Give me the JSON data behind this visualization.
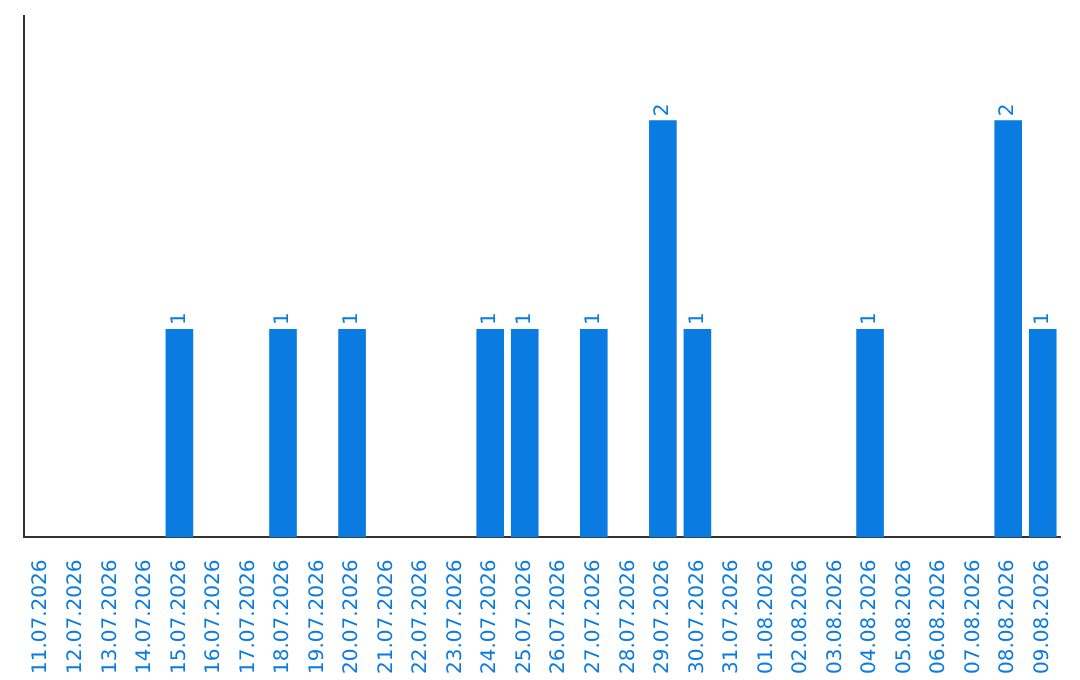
{
  "chart_data": {
    "type": "bar",
    "categories": [
      "11.07.2026",
      "12.07.2026",
      "13.07.2026",
      "14.07.2026",
      "15.07.2026",
      "16.07.2026",
      "17.07.2026",
      "18.07.2026",
      "19.07.2026",
      "20.07.2026",
      "21.07.2026",
      "22.07.2026",
      "23.07.2026",
      "24.07.2026",
      "25.07.2026",
      "26.07.2026",
      "27.07.2026",
      "28.07.2026",
      "29.07.2026",
      "30.07.2026",
      "31.07.2026",
      "01.08.2026",
      "02.08.2026",
      "03.08.2026",
      "04.08.2026",
      "05.08.2026",
      "06.08.2026",
      "07.08.2026",
      "08.08.2026",
      "09.08.2026"
    ],
    "values": [
      0,
      0,
      0,
      0,
      1,
      0,
      0,
      1,
      0,
      1,
      0,
      0,
      0,
      1,
      1,
      0,
      1,
      0,
      2,
      1,
      0,
      0,
      0,
      0,
      1,
      0,
      0,
      0,
      2,
      1
    ],
    "value_labels": [
      null,
      null,
      null,
      null,
      "1",
      null,
      null,
      "1",
      null,
      "1",
      null,
      null,
      null,
      "1",
      "1",
      null,
      "1",
      null,
      "2",
      "1",
      null,
      null,
      null,
      null,
      "1",
      null,
      null,
      null,
      "2",
      "1"
    ],
    "color": "#0a7be0",
    "grid": false,
    "legend": false
  }
}
